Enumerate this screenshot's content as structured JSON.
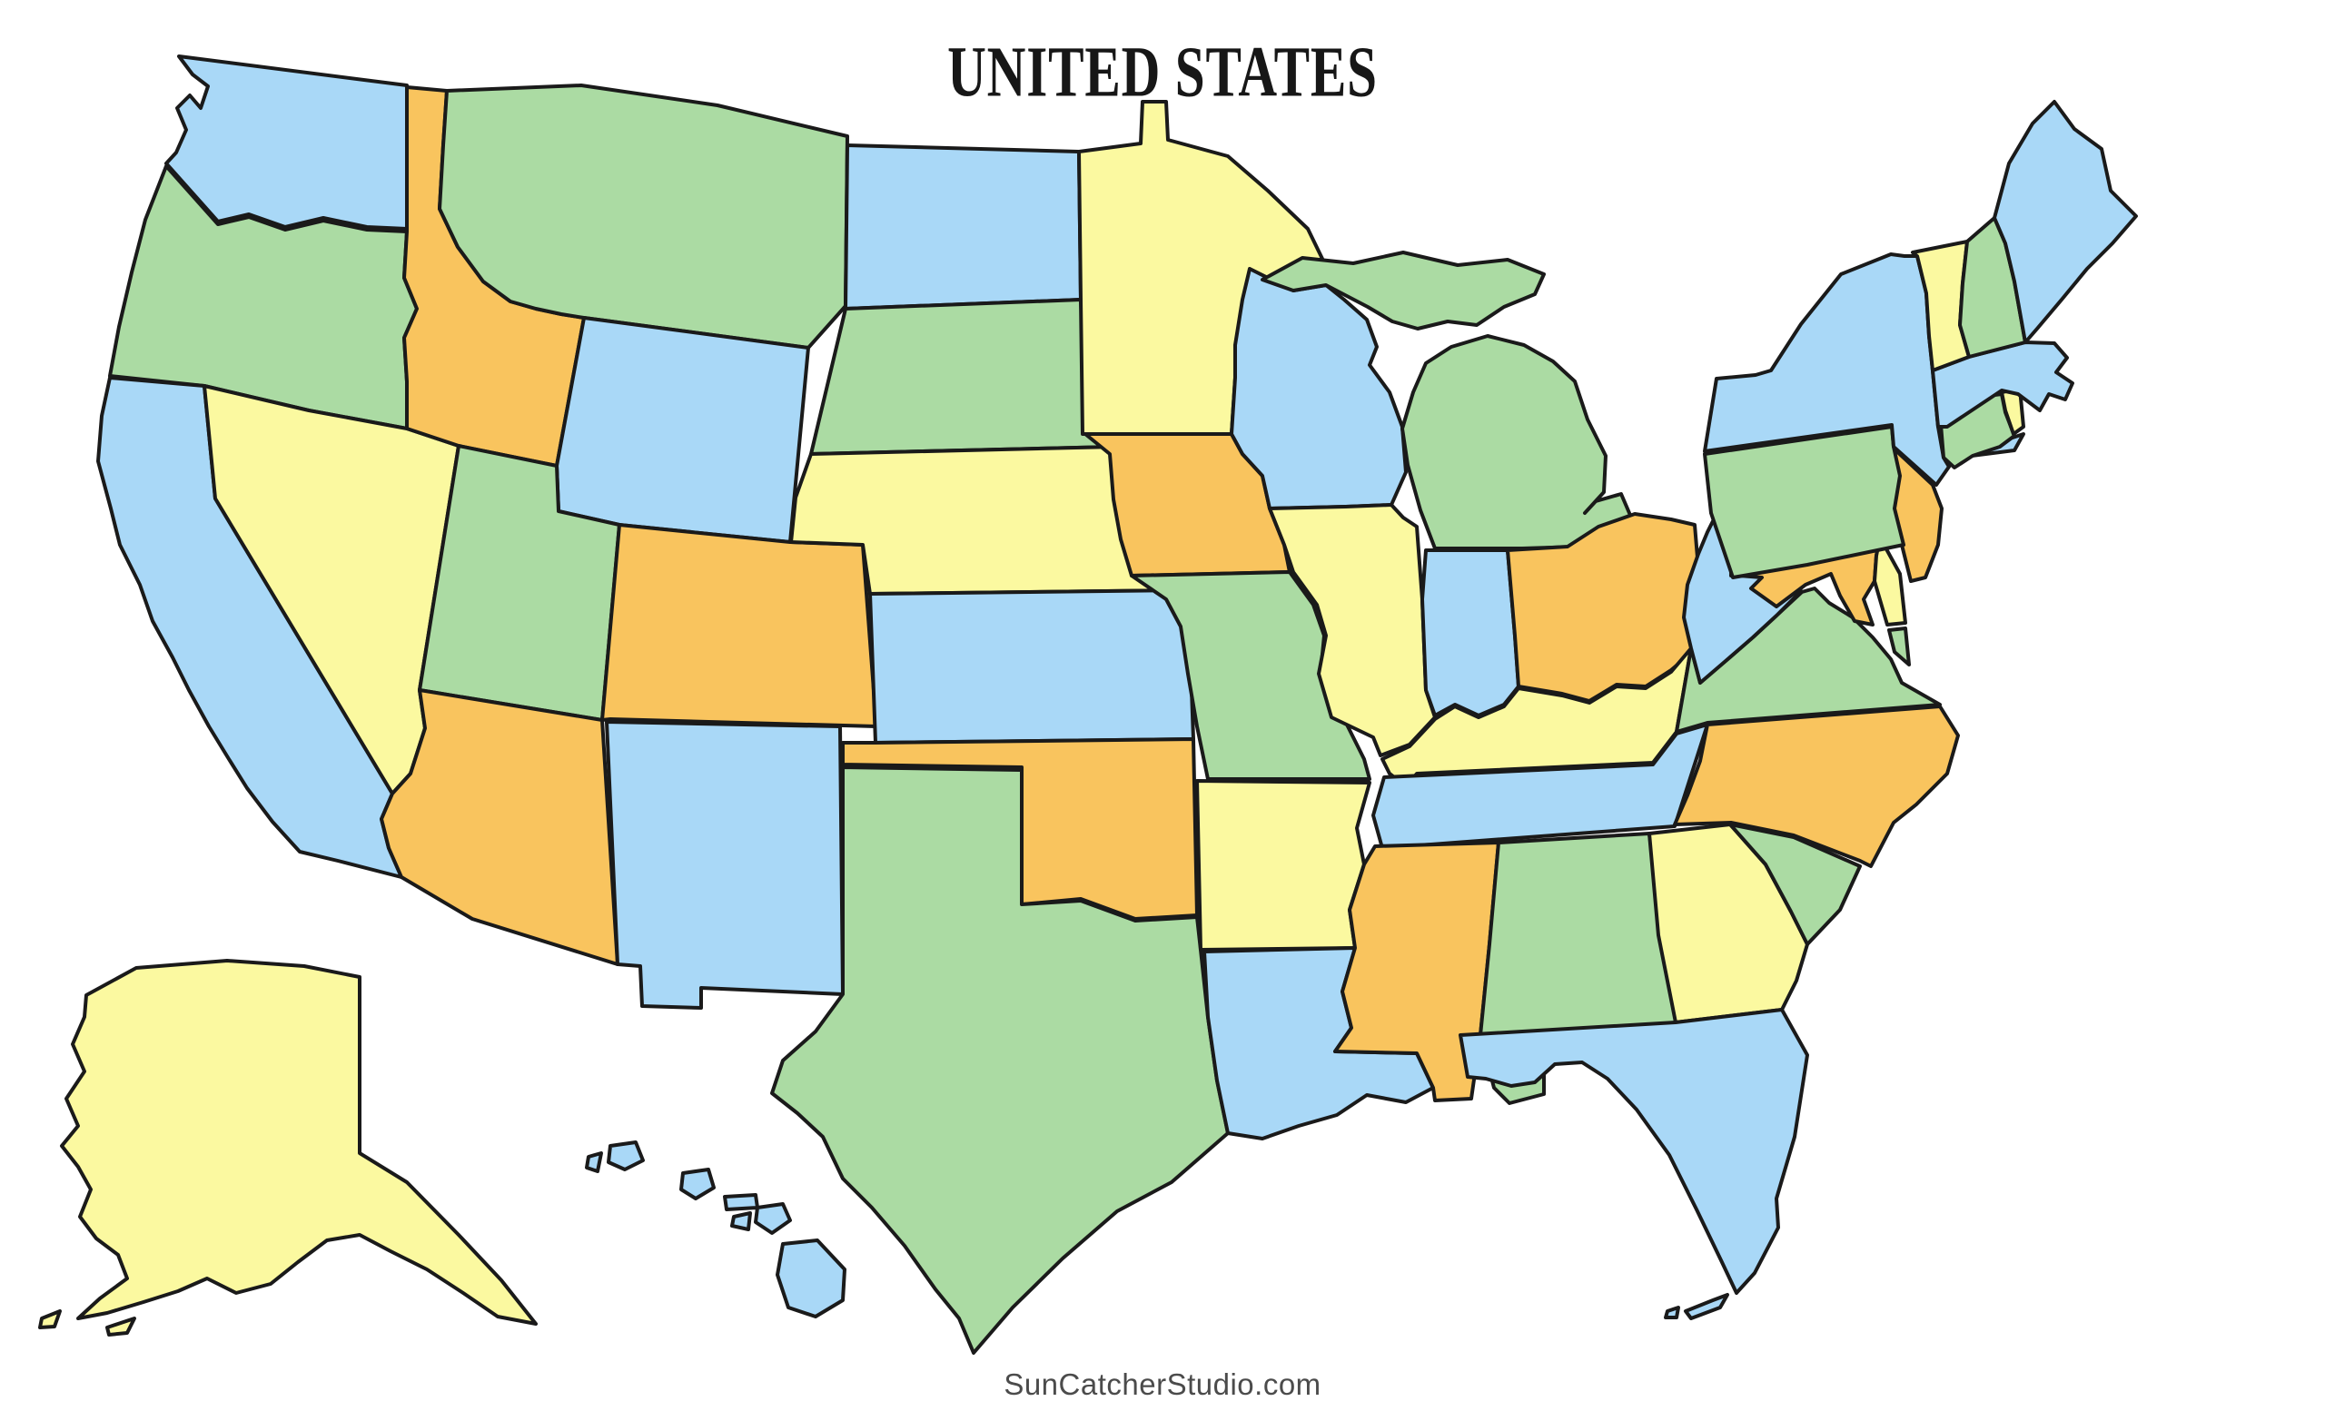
{
  "title": "UNITED STATES",
  "watermark": "SunCatcherStudio.com",
  "map": {
    "type": "political-map-colored-states",
    "country": "United States",
    "outline_color": "#1a1a1a",
    "outline_width": 4,
    "background": "#ffffff",
    "palette": {
      "blue": "#a9d8f7",
      "green": "#abdba3",
      "yellow": "#fbf9a0",
      "orange": "#f9c45e"
    },
    "states": [
      {
        "id": "WA",
        "name": "Washington",
        "color": "blue"
      },
      {
        "id": "OR",
        "name": "Oregon",
        "color": "green"
      },
      {
        "id": "CA",
        "name": "California",
        "color": "blue"
      },
      {
        "id": "NV",
        "name": "Nevada",
        "color": "yellow"
      },
      {
        "id": "ID",
        "name": "Idaho",
        "color": "orange"
      },
      {
        "id": "MT",
        "name": "Montana",
        "color": "green"
      },
      {
        "id": "WY",
        "name": "Wyoming",
        "color": "blue"
      },
      {
        "id": "UT",
        "name": "Utah",
        "color": "green"
      },
      {
        "id": "CO",
        "name": "Colorado",
        "color": "orange"
      },
      {
        "id": "AZ",
        "name": "Arizona",
        "color": "orange"
      },
      {
        "id": "NM",
        "name": "New Mexico",
        "color": "blue"
      },
      {
        "id": "ND",
        "name": "North Dakota",
        "color": "blue"
      },
      {
        "id": "SD",
        "name": "South Dakota",
        "color": "green"
      },
      {
        "id": "NE",
        "name": "Nebraska",
        "color": "yellow"
      },
      {
        "id": "KS",
        "name": "Kansas",
        "color": "blue"
      },
      {
        "id": "OK",
        "name": "Oklahoma",
        "color": "orange"
      },
      {
        "id": "TX",
        "name": "Texas",
        "color": "green"
      },
      {
        "id": "MN",
        "name": "Minnesota",
        "color": "yellow"
      },
      {
        "id": "IA",
        "name": "Iowa",
        "color": "orange"
      },
      {
        "id": "MO",
        "name": "Missouri",
        "color": "green"
      },
      {
        "id": "AR",
        "name": "Arkansas",
        "color": "yellow"
      },
      {
        "id": "LA",
        "name": "Louisiana",
        "color": "blue"
      },
      {
        "id": "WI",
        "name": "Wisconsin",
        "color": "blue"
      },
      {
        "id": "IL",
        "name": "Illinois",
        "color": "yellow"
      },
      {
        "id": "MI",
        "name": "Michigan",
        "color": "green"
      },
      {
        "id": "IN",
        "name": "Indiana",
        "color": "blue"
      },
      {
        "id": "OH",
        "name": "Ohio",
        "color": "orange"
      },
      {
        "id": "KY",
        "name": "Kentucky",
        "color": "yellow"
      },
      {
        "id": "TN",
        "name": "Tennessee",
        "color": "blue"
      },
      {
        "id": "MS",
        "name": "Mississippi",
        "color": "orange"
      },
      {
        "id": "AL",
        "name": "Alabama",
        "color": "green"
      },
      {
        "id": "GA",
        "name": "Georgia",
        "color": "yellow"
      },
      {
        "id": "FL",
        "name": "Florida",
        "color": "blue"
      },
      {
        "id": "SC",
        "name": "South Carolina",
        "color": "green"
      },
      {
        "id": "NC",
        "name": "North Carolina",
        "color": "orange"
      },
      {
        "id": "VA",
        "name": "Virginia",
        "color": "green"
      },
      {
        "id": "WV",
        "name": "West Virginia",
        "color": "blue"
      },
      {
        "id": "MD",
        "name": "Maryland",
        "color": "orange"
      },
      {
        "id": "DE",
        "name": "Delaware",
        "color": "yellow"
      },
      {
        "id": "NJ",
        "name": "New Jersey",
        "color": "orange"
      },
      {
        "id": "PA",
        "name": "Pennsylvania",
        "color": "green"
      },
      {
        "id": "NY",
        "name": "New York",
        "color": "blue"
      },
      {
        "id": "CT",
        "name": "Connecticut",
        "color": "green"
      },
      {
        "id": "RI",
        "name": "Rhode Island",
        "color": "yellow"
      },
      {
        "id": "MA",
        "name": "Massachusetts",
        "color": "blue"
      },
      {
        "id": "VT",
        "name": "Vermont",
        "color": "yellow"
      },
      {
        "id": "NH",
        "name": "New Hampshire",
        "color": "green"
      },
      {
        "id": "ME",
        "name": "Maine",
        "color": "blue"
      },
      {
        "id": "AK",
        "name": "Alaska",
        "color": "yellow"
      },
      {
        "id": "HI",
        "name": "Hawaii",
        "color": "blue"
      }
    ]
  }
}
